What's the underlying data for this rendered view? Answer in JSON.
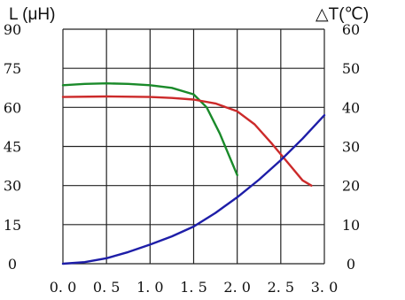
{
  "chart_data": {
    "type": "line",
    "left_axis_label": "L (μH)",
    "right_axis_label": "△T(℃)",
    "x_ticks": [
      "0. 0",
      "0. 5",
      "1. 0",
      "1. 5",
      "2. 0",
      "2. 5",
      "3. 0"
    ],
    "left_ticks": [
      "0",
      "15",
      "30",
      "45",
      "60",
      "75",
      "90"
    ],
    "right_ticks": [
      "0",
      "10",
      "20",
      "30",
      "40",
      "50",
      "60"
    ],
    "xlim": [
      0,
      3.0
    ],
    "left_ylim": [
      0,
      90
    ],
    "right_ylim": [
      0,
      60
    ],
    "grid": true,
    "series": [
      {
        "color": "#1a8a2a",
        "axis": "left",
        "points": [
          [
            0,
            68.5
          ],
          [
            0.25,
            69
          ],
          [
            0.5,
            69.2
          ],
          [
            0.75,
            69
          ],
          [
            1.0,
            68.5
          ],
          [
            1.25,
            67.5
          ],
          [
            1.5,
            65
          ],
          [
            1.65,
            60
          ],
          [
            1.8,
            50
          ],
          [
            1.9,
            42
          ],
          [
            2.0,
            34
          ]
        ]
      },
      {
        "color": "#cc2a2a",
        "axis": "left",
        "points": [
          [
            0,
            64
          ],
          [
            0.5,
            64.2
          ],
          [
            1.0,
            64
          ],
          [
            1.25,
            63.6
          ],
          [
            1.5,
            63
          ],
          [
            1.75,
            61.5
          ],
          [
            2.0,
            58.5
          ],
          [
            2.2,
            53.5
          ],
          [
            2.4,
            46
          ],
          [
            2.6,
            38
          ],
          [
            2.75,
            32
          ],
          [
            2.85,
            30
          ]
        ]
      },
      {
        "color": "#1e1ea8",
        "axis": "right",
        "points": [
          [
            0,
            0
          ],
          [
            0.25,
            0.4
          ],
          [
            0.5,
            1.4
          ],
          [
            0.75,
            3
          ],
          [
            1.0,
            4.9
          ],
          [
            1.25,
            7
          ],
          [
            1.5,
            9.5
          ],
          [
            1.75,
            13
          ],
          [
            2.0,
            17
          ],
          [
            2.25,
            21.5
          ],
          [
            2.5,
            26.5
          ],
          [
            2.75,
            32
          ],
          [
            3.0,
            38
          ]
        ]
      }
    ]
  }
}
